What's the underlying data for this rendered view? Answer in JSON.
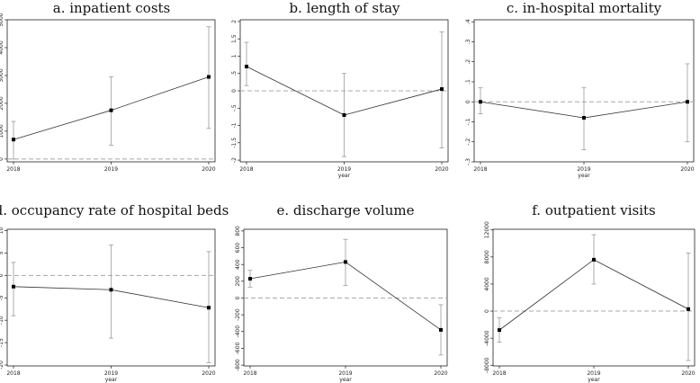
{
  "chart_data": [
    {
      "id": "a",
      "type": "line",
      "title": "a. inpatient costs",
      "xlabel": "",
      "ylabel": "",
      "categories": [
        "2018",
        "2019",
        "2020"
      ],
      "values": [
        700,
        1750,
        2950
      ],
      "ci_lower": [
        0,
        500,
        1100
      ],
      "ci_upper": [
        1350,
        2950,
        4750
      ],
      "ylim": [
        -100,
        5000
      ],
      "yticks": [
        0,
        1000,
        2000,
        3000,
        4000,
        5000
      ],
      "ytick_labels": [
        "0",
        "1000",
        "2000",
        "3000",
        "4000",
        "5000"
      ],
      "reference_line": 0
    },
    {
      "id": "b",
      "type": "line",
      "title": "b. length of stay",
      "xlabel": "year",
      "ylabel": "",
      "categories": [
        "2018",
        "2019",
        "2020"
      ],
      "values": [
        0.7,
        -0.7,
        0.05
      ],
      "ci_lower": [
        0.15,
        -1.9,
        -1.65
      ],
      "ci_upper": [
        1.4,
        0.5,
        1.7
      ],
      "ylim": [
        -2.05,
        2.05
      ],
      "yticks": [
        -2,
        -1.5,
        -1,
        -0.5,
        0,
        0.5,
        1,
        1.5,
        2
      ],
      "ytick_labels": [
        "-2",
        "-1.5",
        "-1",
        "-.5",
        "0",
        ".5",
        "1",
        "1.5",
        "2"
      ],
      "reference_line": 0
    },
    {
      "id": "c",
      "type": "line",
      "title": "c. in-hospital mortality",
      "xlabel": "year",
      "ylabel": "",
      "categories": [
        "2018",
        "2019",
        "2020"
      ],
      "values": [
        0,
        -0.08,
        0
      ],
      "ci_lower": [
        -0.06,
        -0.24,
        -0.2
      ],
      "ci_upper": [
        0.07,
        0.07,
        0.19
      ],
      "ylim": [
        -0.3,
        0.41
      ],
      "yticks": [
        -0.3,
        -0.2,
        -0.1,
        0,
        0.1,
        0.2,
        0.3,
        0.4
      ],
      "ytick_labels": [
        "-.3",
        "-.2",
        "-.1",
        "0",
        ".1",
        ".2",
        ".3",
        ".4"
      ],
      "reference_line": 0
    },
    {
      "id": "d",
      "type": "line",
      "title": "d. occupancy rate of hospital beds",
      "xlabel": "year",
      "ylabel": "",
      "categories": [
        "2018",
        "2019",
        "2020"
      ],
      "values": [
        -2.5,
        -3.2,
        -7.2
      ],
      "ci_lower": [
        -9,
        -14,
        -19.5
      ],
      "ci_upper": [
        2.9,
        6.8,
        5.3
      ],
      "ylim": [
        -20.2,
        10.3
      ],
      "yticks": [
        -20,
        -15,
        -10,
        -5,
        0,
        5,
        10
      ],
      "ytick_labels": [
        "-20",
        "-15",
        "-10",
        "-5",
        "0",
        "5",
        "10"
      ],
      "reference_line": 0
    },
    {
      "id": "e",
      "type": "line",
      "title": "e. discharge volume",
      "xlabel": "year",
      "ylabel": "",
      "categories": [
        "2018",
        "2019",
        "2020"
      ],
      "values": [
        230,
        430,
        -380
      ],
      "ci_lower": [
        130,
        150,
        -680
      ],
      "ci_upper": [
        330,
        700,
        -80
      ],
      "ylim": [
        -810,
        820
      ],
      "yticks": [
        -800,
        -600,
        -400,
        -200,
        0,
        200,
        400,
        600,
        800
      ],
      "ytick_labels": [
        "-800",
        "-600",
        "-400",
        "-200",
        "0",
        "200",
        "400",
        "600",
        "800"
      ],
      "reference_line": 0
    },
    {
      "id": "f",
      "type": "line",
      "title": "f. outpatient visits",
      "xlabel": "year",
      "ylabel": "",
      "categories": [
        "2018",
        "2019",
        "2020"
      ],
      "values": [
        -2800,
        7600,
        300
      ],
      "ci_lower": [
        -4600,
        4000,
        -7300
      ],
      "ci_upper": [
        -1000,
        11300,
        8600
      ],
      "ylim": [
        -8100,
        12100
      ],
      "yticks": [
        -8000,
        -4000,
        0,
        4000,
        8000,
        12000
      ],
      "ytick_labels": [
        "-8000",
        "-4000",
        "0",
        "4000",
        "8000",
        "12000"
      ],
      "reference_line": 0
    }
  ]
}
